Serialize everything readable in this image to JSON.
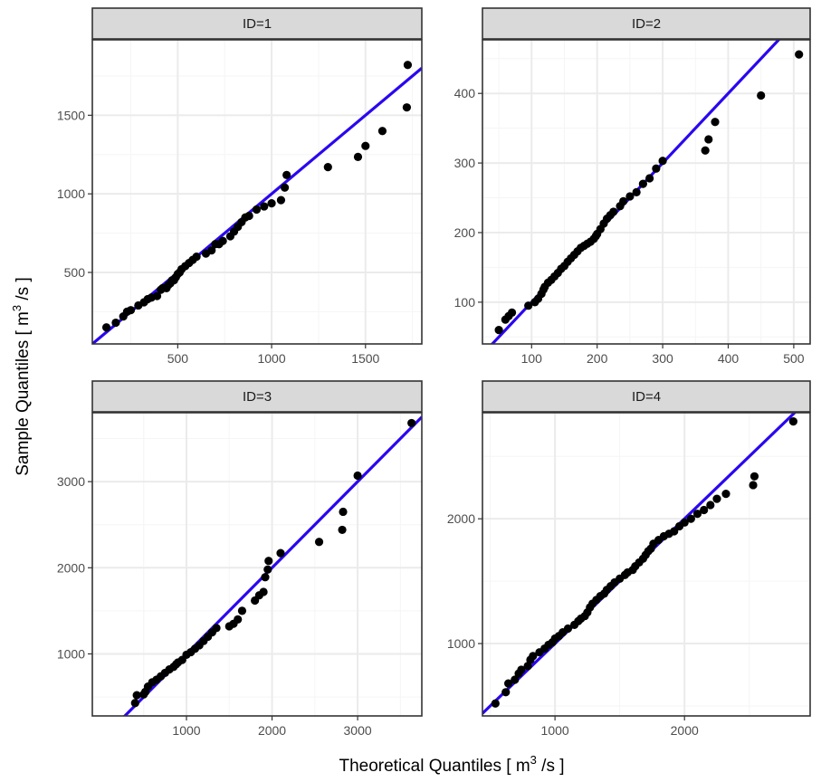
{
  "xlabel": {
    "main": "Theoretical Quantiles [ m",
    "sup": "3",
    "tail": " /s ]"
  },
  "ylabel": {
    "main": "Sample Quantiles [ m",
    "sup": "3",
    "tail": " /s ]"
  },
  "colors": {
    "line": "#2a07f0",
    "point": "#000000",
    "strip_bg": "#d9d9d9",
    "grid_major": "#ebebeb",
    "grid_minor": "#f5f5f5",
    "border": "#333333"
  },
  "chart_data": [
    {
      "type": "scatter",
      "title": "ID=1",
      "xlim": [
        45,
        1800
      ],
      "ylim": [
        45,
        1980
      ],
      "xticks": [
        500,
        1000,
        1500
      ],
      "yticks": [
        500,
        1000,
        1500
      ],
      "line": {
        "x": [
          45,
          1800
        ],
        "y": [
          45,
          1800
        ]
      },
      "series": [
        {
          "x": [
            120,
            170,
            210,
            230,
            250,
            290,
            320,
            340,
            360,
            390,
            410,
            420,
            440,
            450,
            460,
            470,
            480,
            490,
            500,
            510,
            520,
            540,
            560,
            580,
            600,
            650,
            680,
            700,
            720,
            740,
            780,
            800,
            820,
            840,
            860,
            880,
            920,
            960,
            1000,
            1050,
            1070,
            1080,
            1300,
            1460,
            1500,
            1590,
            1720,
            1725
          ],
          "y": [
            150,
            180,
            220,
            250,
            260,
            290,
            310,
            330,
            340,
            350,
            390,
            400,
            400,
            420,
            430,
            450,
            450,
            470,
            490,
            500,
            520,
            540,
            560,
            580,
            600,
            620,
            640,
            680,
            680,
            700,
            730,
            760,
            790,
            820,
            850,
            860,
            900,
            920,
            940,
            960,
            1040,
            1120,
            1170,
            1235,
            1305,
            1400,
            1550,
            1820
          ]
        }
      ]
    },
    {
      "type": "scatter",
      "title": "ID=2",
      "xlim": [
        25,
        525
      ],
      "ylim": [
        40,
        477
      ],
      "xticks": [
        100,
        200,
        300,
        400,
        500
      ],
      "yticks": [
        100,
        200,
        300,
        400
      ],
      "line": {
        "x": [
          25,
          525
        ],
        "y": [
          25,
          525
        ]
      },
      "series": [
        {
          "x": [
            50,
            60,
            65,
            70,
            95,
            105,
            110,
            115,
            118,
            120,
            125,
            130,
            135,
            140,
            145,
            150,
            155,
            160,
            165,
            170,
            175,
            180,
            185,
            190,
            195,
            198,
            200,
            205,
            210,
            215,
            220,
            225,
            235,
            240,
            250,
            260,
            270,
            280,
            290,
            300,
            365,
            370,
            380,
            450,
            508
          ],
          "y": [
            60,
            75,
            80,
            85,
            95,
            100,
            105,
            112,
            118,
            122,
            128,
            132,
            137,
            142,
            148,
            152,
            158,
            163,
            168,
            173,
            178,
            181,
            184,
            187,
            191,
            195,
            198,
            205,
            213,
            220,
            225,
            230,
            238,
            245,
            252,
            258,
            270,
            278,
            292,
            303,
            318,
            334,
            359,
            397,
            456
          ]
        }
      ]
    },
    {
      "type": "scatter",
      "title": "ID=3",
      "xlim": [
        -100,
        3750
      ],
      "ylim": [
        280,
        3800
      ],
      "xticks": [
        1000,
        2000,
        3000
      ],
      "yticks": [
        1000,
        2000,
        3000
      ],
      "line": {
        "x": [
          -100,
          3750
        ],
        "y": [
          -100,
          3750
        ]
      },
      "series": [
        {
          "x": [
            400,
            420,
            500,
            520,
            550,
            600,
            650,
            700,
            750,
            800,
            850,
            880,
            900,
            950,
            1000,
            1050,
            1100,
            1150,
            1200,
            1250,
            1300,
            1350,
            1500,
            1550,
            1600,
            1650,
            1800,
            1850,
            1900,
            1920,
            1950,
            1960,
            2100,
            2550,
            2820,
            2830,
            3000,
            3630
          ],
          "y": [
            430,
            520,
            530,
            560,
            620,
            670,
            700,
            740,
            780,
            820,
            850,
            880,
            900,
            930,
            990,
            1020,
            1060,
            1100,
            1150,
            1200,
            1250,
            1300,
            1320,
            1350,
            1400,
            1500,
            1620,
            1680,
            1720,
            1890,
            1980,
            2080,
            2170,
            2300,
            2440,
            2650,
            3070,
            3680
          ]
        }
      ]
    },
    {
      "type": "scatter",
      "title": "ID=4",
      "xlim": [
        440,
        2970
      ],
      "ylim": [
        420,
        2850
      ],
      "xticks": [
        1000,
        2000
      ],
      "yticks": [
        1000,
        2000
      ],
      "line": {
        "x": [
          440,
          2970
        ],
        "y": [
          440,
          2970
        ]
      },
      "series": [
        {
          "x": [
            540,
            620,
            640,
            690,
            720,
            740,
            790,
            810,
            830,
            880,
            920,
            950,
            980,
            1000,
            1030,
            1060,
            1100,
            1150,
            1180,
            1200,
            1230,
            1250,
            1270,
            1290,
            1320,
            1350,
            1380,
            1400,
            1430,
            1460,
            1500,
            1540,
            1560,
            1600,
            1620,
            1650,
            1680,
            1700,
            1720,
            1740,
            1760,
            1800,
            1840,
            1880,
            1920,
            1960,
            2000,
            2050,
            2100,
            2150,
            2200,
            2250,
            2320,
            2530,
            2540,
            2840
          ],
          "y": [
            520,
            610,
            680,
            710,
            760,
            790,
            820,
            870,
            900,
            930,
            960,
            990,
            1010,
            1040,
            1060,
            1090,
            1120,
            1150,
            1180,
            1200,
            1220,
            1250,
            1290,
            1320,
            1350,
            1380,
            1400,
            1430,
            1460,
            1490,
            1520,
            1550,
            1570,
            1590,
            1620,
            1650,
            1680,
            1710,
            1740,
            1760,
            1800,
            1830,
            1860,
            1880,
            1900,
            1940,
            1970,
            2000,
            2040,
            2070,
            2110,
            2160,
            2200,
            2270,
            2340,
            2780
          ]
        }
      ]
    }
  ]
}
